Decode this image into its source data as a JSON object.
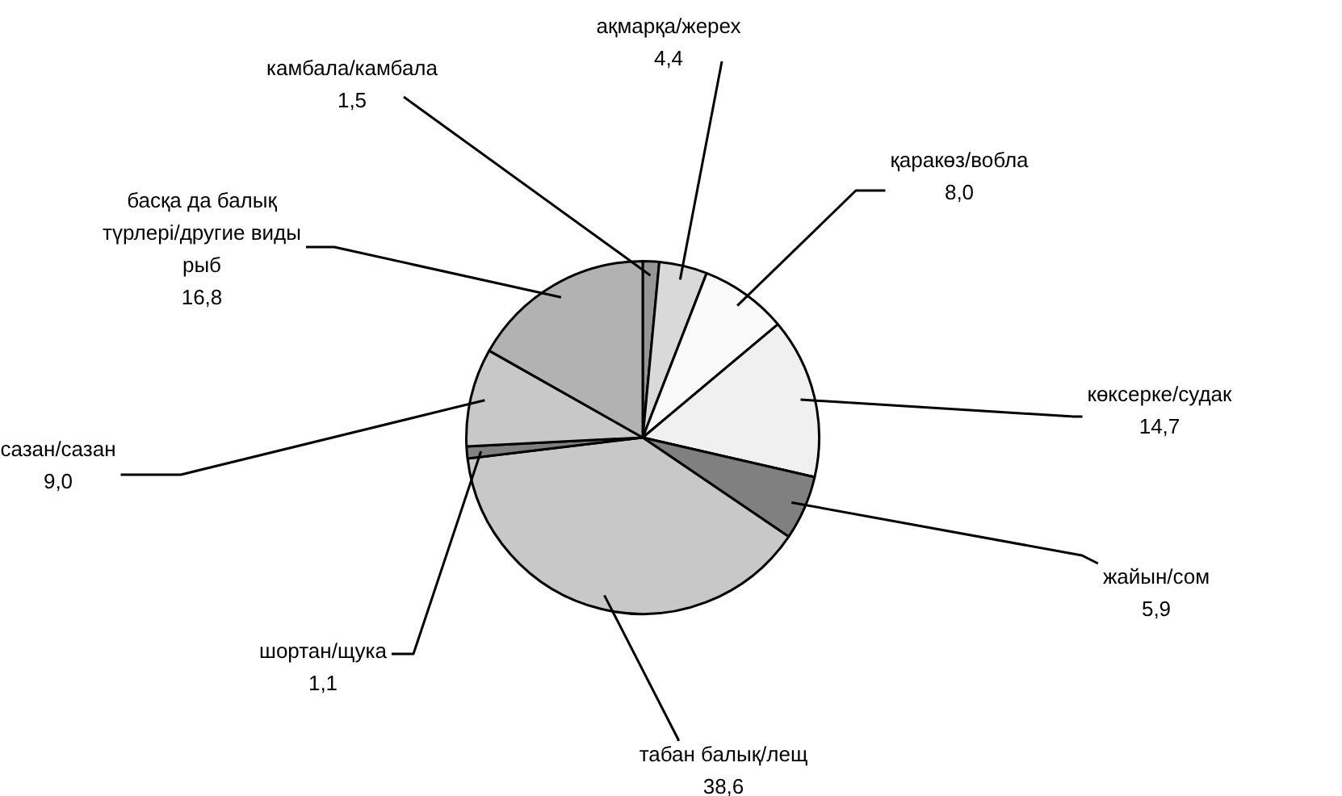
{
  "chart_data": {
    "type": "pie",
    "categories": [
      "камбала/камбала",
      "ақмарқа/жерех",
      "қаракөз/вобла",
      "көксерке/судак",
      "жайын/сом",
      "табан балық/лещ",
      "шортан/щука",
      "сазан/сазан",
      "басқа да балық түрлері/другие виды рыб"
    ],
    "values": [
      1.5,
      4.4,
      8.0,
      14.7,
      5.9,
      38.6,
      1.1,
      9.0,
      16.8
    ],
    "value_labels": [
      "1,5",
      "4,4",
      "8,0",
      "14,7",
      "5,9",
      "38,6",
      "1,1",
      "9,0",
      "16,8"
    ],
    "colors": [
      "#969696",
      "#d9d9d9",
      "#fafafa",
      "#f0f0f0",
      "#808080",
      "#c8c8c8",
      "#808080",
      "#c8c8c8",
      "#b2b2b2"
    ],
    "legend": false
  }
}
